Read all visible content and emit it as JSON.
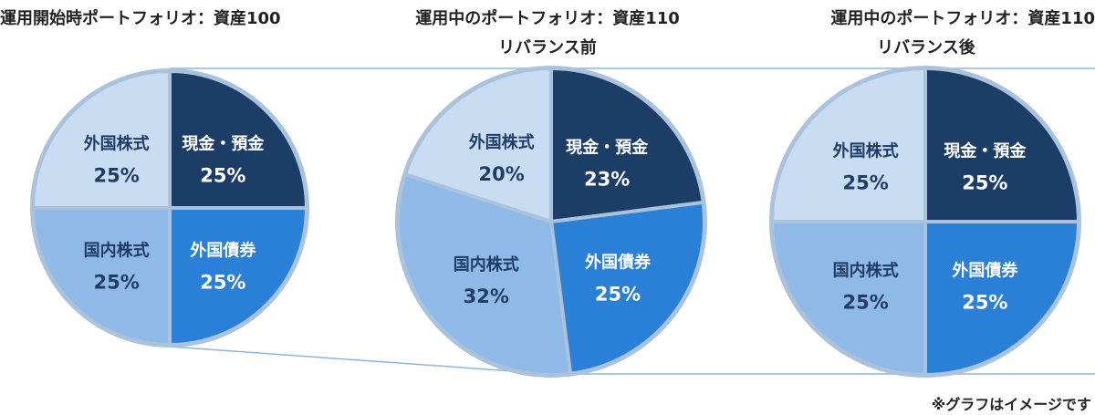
{
  "colors": {
    "cash": "#1c3d66",
    "foreign_bonds": "#2a7fd6",
    "domestic_stocks": "#8fb9e6",
    "foreign_stocks": "#c9ddf2",
    "border": "#aac2dc",
    "connector": "#8db6d9",
    "text_light": "#ffffff",
    "text_dark": "#1f3d66"
  },
  "titles": {
    "chart1": "運用開始時ポートフォリオ：資産100",
    "chart2": "運用中のポートフォリオ：資産110",
    "chart2_sub": "リバランス前",
    "chart3": "運用中のポートフォリオ：資産110",
    "chart3_sub": "リバランス後"
  },
  "note": "※グラフはイメージです",
  "chart_data": [
    {
      "type": "pie",
      "title": "運用開始時ポートフォリオ：資産100",
      "slices": [
        {
          "label": "現金・預金",
          "value": 25,
          "pct_label": "25%",
          "color": "#1c3d66"
        },
        {
          "label": "外国債券",
          "value": 25,
          "pct_label": "25%",
          "color": "#2a7fd6"
        },
        {
          "label": "国内株式",
          "value": 25,
          "pct_label": "25%",
          "color": "#8fb9e6"
        },
        {
          "label": "外国株式",
          "value": 25,
          "pct_label": "25%",
          "color": "#c9ddf2"
        }
      ]
    },
    {
      "type": "pie",
      "title": "運用中のポートフォリオ：資産110",
      "subtitle": "リバランス前",
      "slices": [
        {
          "label": "現金・預金",
          "value": 23,
          "pct_label": "23%",
          "color": "#1c3d66"
        },
        {
          "label": "外国債券",
          "value": 25,
          "pct_label": "25%",
          "color": "#2a7fd6"
        },
        {
          "label": "国内株式",
          "value": 32,
          "pct_label": "32%",
          "color": "#8fb9e6"
        },
        {
          "label": "外国株式",
          "value": 20,
          "pct_label": "20%",
          "color": "#c9ddf2"
        }
      ]
    },
    {
      "type": "pie",
      "title": "運用中のポートフォリオ：資産110",
      "subtitle": "リバランス後",
      "slices": [
        {
          "label": "現金・預金",
          "value": 25,
          "pct_label": "25%",
          "color": "#1c3d66"
        },
        {
          "label": "外国債券",
          "value": 25,
          "pct_label": "25%",
          "color": "#2a7fd6"
        },
        {
          "label": "国内株式",
          "value": 25,
          "pct_label": "25%",
          "color": "#8fb9e6"
        },
        {
          "label": "外国株式",
          "value": 25,
          "pct_label": "25%",
          "color": "#c9ddf2"
        }
      ]
    }
  ]
}
